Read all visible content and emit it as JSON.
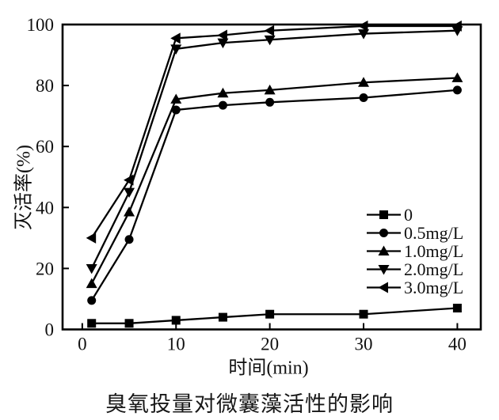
{
  "chart_data": {
    "type": "line",
    "title": "",
    "caption": "臭氧投量对微囊藻活性的影响",
    "xlabel": "时间(min)",
    "ylabel": "灭活率(%)",
    "x": [
      1,
      5,
      10,
      15,
      20,
      30,
      40
    ],
    "xlim": [
      -2.1,
      42.5
    ],
    "ylim": [
      0,
      100
    ],
    "x_ticks": [
      0,
      10,
      20,
      30,
      40
    ],
    "y_ticks": [
      0,
      20,
      40,
      60,
      80,
      100
    ],
    "grid": false,
    "legend_position": "inside-bottom-right",
    "axis_color": "#000000",
    "background_color": "#ffffff",
    "series": [
      {
        "name": "0",
        "marker": "square",
        "color": "#000000",
        "values": [
          2,
          2,
          3,
          4,
          5,
          5,
          7
        ]
      },
      {
        "name": "0.5mg/L",
        "marker": "circle",
        "color": "#000000",
        "values": [
          9.5,
          29.5,
          72,
          73.5,
          74.5,
          76,
          78.5
        ]
      },
      {
        "name": "1.0mg/L",
        "marker": "triangle-up",
        "color": "#000000",
        "values": [
          15,
          38.5,
          75.5,
          77.5,
          78.5,
          81,
          82.5
        ]
      },
      {
        "name": "2.0mg/L",
        "marker": "triangle-down",
        "color": "#000000",
        "values": [
          20,
          45,
          92,
          94,
          95,
          97,
          98
        ]
      },
      {
        "name": "3.0mg/L",
        "marker": "triangle-left",
        "color": "#000000",
        "values": [
          30,
          49,
          95.5,
          96.5,
          98,
          99.5,
          99.5
        ]
      }
    ]
  }
}
